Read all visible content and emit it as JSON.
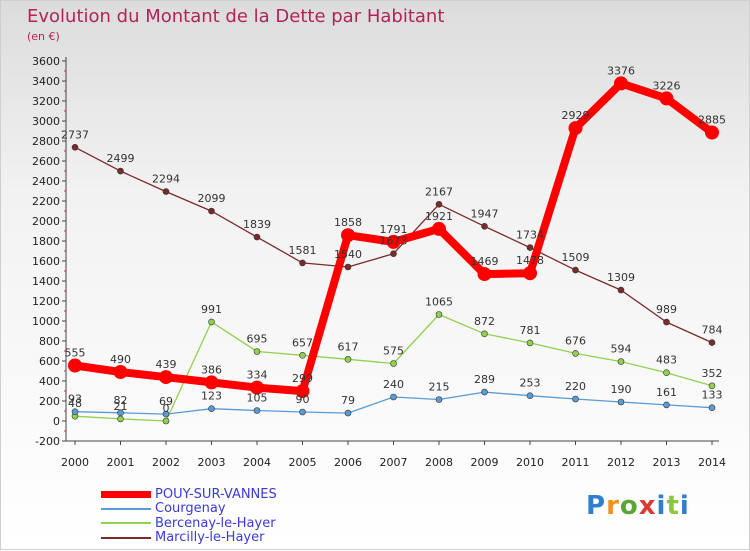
{
  "header": {
    "title": "Evolution du Montant de la Dette par Habitant",
    "unit": "(en €)"
  },
  "logo": {
    "text": "Proxiti"
  },
  "chart_data": {
    "type": "line",
    "title": "Evolution du Montant de la Dette par Habitant",
    "ylabel": "(en €)",
    "x": [
      "2000",
      "2001",
      "2002",
      "2003",
      "2004",
      "2005",
      "2006",
      "2007",
      "2008",
      "2009",
      "2010",
      "2011",
      "2012",
      "2013",
      "2014"
    ],
    "ylim": [
      -200,
      3600
    ],
    "yticks": [
      -200,
      0,
      200,
      400,
      600,
      800,
      1000,
      1200,
      1400,
      1600,
      1800,
      2000,
      2200,
      2400,
      2600,
      2800,
      3000,
      3200,
      3400,
      3600
    ],
    "grid": false,
    "legend_position": "bottom-left",
    "series": [
      {
        "name": "POUY-SUR-VANNES",
        "color": "#ff0000",
        "values": [
          555,
          490,
          439,
          386,
          334,
          299,
          1858,
          1791,
          1921,
          1469,
          1478,
          2929,
          3376,
          3226,
          2885
        ]
      },
      {
        "name": "Courgenay",
        "color": "#5b9bd5",
        "values": [
          93,
          82,
          69,
          123,
          105,
          90,
          79,
          240,
          215,
          289,
          253,
          220,
          190,
          161,
          133
        ]
      },
      {
        "name": "Bercenay-le-Hayer",
        "color": "#92d050",
        "values": [
          48,
          21,
          0,
          991,
          695,
          657,
          617,
          575,
          1065,
          872,
          781,
          676,
          594,
          483,
          352
        ]
      },
      {
        "name": "Marcilly-le-Hayer",
        "color": "#7b2b2b",
        "values": [
          2737,
          2499,
          2294,
          2099,
          1839,
          1581,
          1540,
          1673,
          2167,
          1947,
          1734,
          1509,
          1309,
          989,
          784
        ]
      }
    ]
  }
}
